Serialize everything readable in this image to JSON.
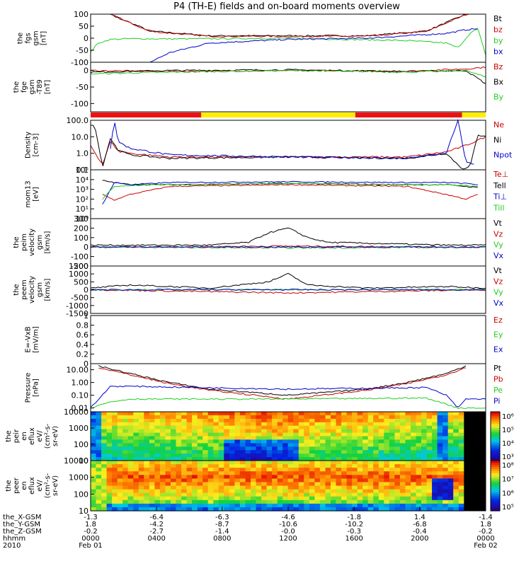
{
  "title": "P4 (TH-E) fields and on-board moments overview",
  "colors": {
    "black": "#000000",
    "red": "#cc0000",
    "green": "#22cc22",
    "blue": "#0000cc",
    "bar_red": "#ee1111",
    "bar_yellow": "#ffee00"
  },
  "chart_data": [
    {
      "type": "line",
      "id": "fgs",
      "ylabel": [
        "the",
        "fgs",
        "gsm",
        "[nT]"
      ],
      "ylim": [
        -100,
        100
      ],
      "yticks": [
        100,
        50,
        0,
        -50,
        -100
      ],
      "legend": [
        "Bt",
        "bz",
        "by",
        "bx"
      ],
      "series": [
        {
          "name": "Bt",
          "color": "black",
          "shape": "bathtub",
          "x": [
            0,
            0.05,
            0.15,
            0.3,
            0.5,
            0.7,
            0.85,
            0.95,
            1.0
          ],
          "y": [
            150,
            100,
            30,
            10,
            10,
            10,
            30,
            100,
            150
          ]
        },
        {
          "name": "bz",
          "color": "red",
          "shape": "bathtub",
          "x": [
            0,
            0.05,
            0.15,
            0.3,
            0.5,
            0.7,
            0.85,
            0.95,
            1.0
          ],
          "y": [
            148,
            98,
            28,
            8,
            8,
            8,
            28,
            98,
            148
          ]
        },
        {
          "name": "by",
          "color": "green",
          "x": [
            0,
            0.02,
            0.05,
            0.1,
            0.2,
            0.5,
            0.8,
            0.9,
            0.93,
            0.96,
            0.98,
            1.0
          ],
          "y": [
            -55,
            -20,
            -5,
            -2,
            -3,
            0,
            -10,
            -20,
            -40,
            20,
            40,
            -70
          ]
        },
        {
          "name": "bx",
          "color": "blue",
          "x": [
            0.15,
            0.2,
            0.3,
            0.5,
            0.7,
            0.8,
            0.9,
            0.95,
            0.98
          ],
          "y": [
            -100,
            -60,
            -20,
            -5,
            0,
            10,
            20,
            35,
            40
          ]
        }
      ]
    },
    {
      "type": "line",
      "id": "fge",
      "ylabel": [
        "the",
        "fge",
        "gsm",
        "-T89",
        "[nT]"
      ],
      "ylim": [
        -125,
        25
      ],
      "yticks": [
        0,
        -50,
        -100
      ],
      "legend": [
        "Bz",
        "Bx",
        "By"
      ],
      "series": [
        {
          "name": "Bz",
          "color": "red",
          "x": [
            0,
            0.2,
            0.5,
            0.8,
            0.95,
            1.0
          ],
          "y": [
            0,
            -3,
            0,
            -2,
            5,
            10
          ]
        },
        {
          "name": "Bx",
          "color": "black",
          "x": [
            0,
            0.2,
            0.5,
            0.8,
            0.95,
            1.0
          ],
          "y": [
            -5,
            0,
            2,
            -3,
            0,
            -40
          ]
        },
        {
          "name": "By",
          "color": "green",
          "x": [
            0,
            0.2,
            0.5,
            0.8,
            0.95,
            1.0
          ],
          "y": [
            -10,
            -5,
            0,
            -5,
            0,
            -20
          ]
        }
      ]
    },
    {
      "type": "bar",
      "id": "mode_bar",
      "segments": [
        {
          "from": 0.0,
          "to": 0.28,
          "color": "bar_red"
        },
        {
          "from": 0.28,
          "to": 0.67,
          "color": "bar_yellow"
        },
        {
          "from": 0.67,
          "to": 0.94,
          "color": "bar_red"
        },
        {
          "from": 0.94,
          "to": 1.0,
          "color": "bar_yellow"
        }
      ]
    },
    {
      "type": "line",
      "id": "density",
      "scale": "log",
      "ylabel": [
        "Density",
        "[cm-3]"
      ],
      "ylim": [
        0.1,
        100
      ],
      "yticks": [
        100.0,
        10.0,
        1.0,
        0.1
      ],
      "yticklabels": [
        "100.0",
        "10.0",
        "1.0",
        "0.1"
      ],
      "legend": [
        "Ne",
        "Ni",
        "Npot"
      ],
      "series": [
        {
          "name": "Ne",
          "color": "red",
          "x": [
            0,
            0.03,
            0.05,
            0.07,
            0.1,
            0.2,
            0.5,
            0.8,
            0.9,
            0.95,
            1.0
          ],
          "y": [
            3,
            0.2,
            5,
            1.5,
            1,
            0.6,
            0.6,
            0.6,
            1.2,
            3,
            10
          ]
        },
        {
          "name": "Ni",
          "color": "black",
          "x": [
            0,
            0.01,
            0.03,
            0.05,
            0.07,
            0.1,
            0.2,
            0.5,
            0.8,
            0.9,
            0.94,
            0.96,
            0.98,
            1.0
          ],
          "y": [
            50,
            60,
            0.15,
            8,
            1.5,
            0.8,
            0.5,
            0.6,
            0.5,
            1,
            0.12,
            0.15,
            12,
            12
          ]
        },
        {
          "name": "Npot",
          "color": "blue",
          "x": [
            0.05,
            0.06,
            0.07,
            0.1,
            0.2,
            0.5,
            0.8,
            0.9,
            0.93,
            0.95,
            0.97
          ],
          "y": [
            2,
            100,
            5,
            2,
            0.8,
            0.6,
            0.5,
            1,
            100,
            0.3,
            0.2
          ]
        }
      ]
    },
    {
      "type": "line",
      "id": "temperature",
      "scale": "log",
      "ylabel": [
        "mom13",
        "[eV]"
      ],
      "ylim": [
        1,
        100000
      ],
      "yticks": [
        100000,
        10000,
        1000,
        100,
        10,
        1
      ],
      "yticklabels": [
        "10⁵",
        "10⁴",
        "10³",
        "10²",
        "10¹",
        "10⁰"
      ],
      "legend": [
        "Te⊥",
        "Tell",
        "Ti⊥",
        "Till"
      ],
      "series": [
        {
          "name": "Te⊥",
          "color": "red",
          "x": [
            0.03,
            0.06,
            0.1,
            0.2,
            0.5,
            0.8,
            0.9,
            0.95,
            0.98
          ],
          "y": [
            300,
            80,
            300,
            2000,
            3000,
            2000,
            300,
            100,
            300
          ]
        },
        {
          "name": "Tell",
          "color": "black",
          "x": [
            0.03,
            0.06,
            0.1,
            0.2,
            0.5,
            0.8,
            0.9,
            0.95,
            0.98
          ],
          "y": [
            8000,
            5000,
            3000,
            3000,
            4000,
            3000,
            3000,
            2000,
            1500
          ]
        },
        {
          "name": "Ti⊥",
          "color": "blue",
          "x": [
            0.03,
            0.06,
            0.1,
            0.2,
            0.5,
            0.8,
            0.9,
            0.95,
            0.98
          ],
          "y": [
            30,
            5000,
            3000,
            5000,
            6000,
            5000,
            5000,
            4000,
            3000
          ]
        },
        {
          "name": "Till",
          "color": "green",
          "x": [
            0.03,
            0.06,
            0.1,
            0.2,
            0.5,
            0.8,
            0.9,
            0.95,
            0.98
          ],
          "y": [
            100,
            2000,
            2500,
            3000,
            4000,
            3000,
            3000,
            2500,
            2000
          ]
        }
      ]
    },
    {
      "type": "line",
      "id": "peim_velocity",
      "ylabel": [
        "the",
        "peim",
        "velocity",
        "gsm",
        "[km/s]"
      ],
      "ylim": [
        -200,
        300
      ],
      "yticks": [
        300,
        200,
        100,
        0,
        -100,
        -200
      ],
      "legend": [
        "Vt",
        "Vz",
        "Vy",
        "Vx"
      ],
      "series": [
        {
          "name": "Vt",
          "color": "black",
          "x": [
            0,
            0.3,
            0.4,
            0.45,
            0.5,
            0.55,
            0.6,
            0.9,
            1.0
          ],
          "y": [
            20,
            20,
            50,
            150,
            200,
            100,
            50,
            20,
            20
          ]
        },
        {
          "name": "Vz",
          "color": "red",
          "x": [
            0,
            0.5,
            1.0
          ],
          "y": [
            0,
            10,
            0
          ]
        },
        {
          "name": "Vy",
          "color": "green",
          "x": [
            0,
            0.5,
            1.0
          ],
          "y": [
            0,
            -10,
            0
          ]
        },
        {
          "name": "Vx",
          "color": "blue",
          "x": [
            0,
            0.5,
            1.0
          ],
          "y": [
            0,
            0,
            0
          ]
        }
      ]
    },
    {
      "type": "line",
      "id": "peem_velocity",
      "ylabel": [
        "the",
        "peem",
        "velocity",
        "gsm",
        "[km/s]"
      ],
      "ylim": [
        -1500,
        1500
      ],
      "yticks": [
        1500,
        1000,
        500,
        0,
        -500,
        -1000,
        -1500
      ],
      "legend": [
        "Vt",
        "Vz",
        "Vy",
        "Vx"
      ],
      "series": [
        {
          "name": "Vt",
          "color": "black",
          "x": [
            0,
            0.1,
            0.3,
            0.45,
            0.5,
            0.55,
            0.7,
            0.9,
            1.0
          ],
          "y": [
            100,
            300,
            100,
            500,
            1000,
            300,
            100,
            200,
            100
          ]
        },
        {
          "name": "Vz",
          "color": "red",
          "x": [
            0,
            0.5,
            1.0
          ],
          "y": [
            0,
            -200,
            0
          ]
        },
        {
          "name": "Vy",
          "color": "green",
          "x": [
            0,
            0.5,
            1.0
          ],
          "y": [
            0,
            0,
            0
          ]
        },
        {
          "name": "Vx",
          "color": "blue",
          "x": [
            0,
            0.5,
            1.0
          ],
          "y": [
            0,
            0,
            0
          ]
        }
      ]
    },
    {
      "type": "line",
      "id": "efield",
      "ylabel": [
        "E=-VxB",
        "[mV/m]"
      ],
      "ylim": [
        0,
        1
      ],
      "yticks": [
        1.0,
        0.8,
        0.6,
        0.4,
        0.2,
        0.0
      ],
      "legend": [
        "Ez",
        "Ey",
        "Ex"
      ],
      "series": []
    },
    {
      "type": "line",
      "id": "pressure",
      "scale": "log",
      "ylabel": [
        "Pressure",
        "[nPa]"
      ],
      "ylim": [
        0.005,
        30
      ],
      "yticks": [
        10,
        1,
        0.1,
        0.01
      ],
      "yticklabels": [
        "10.00",
        "1.00",
        "0.10",
        "0.01"
      ],
      "legend": [
        "Pt",
        "Pb",
        "Pe",
        "Pi"
      ],
      "series": [
        {
          "name": "Pt",
          "color": "black",
          "x": [
            0.02,
            0.1,
            0.2,
            0.3,
            0.5,
            0.7,
            0.8,
            0.9,
            0.95
          ],
          "y": [
            20,
            5,
            1,
            0.3,
            0.1,
            0.3,
            1,
            5,
            20
          ]
        },
        {
          "name": "Pb",
          "color": "red",
          "x": [
            0.02,
            0.1,
            0.2,
            0.3,
            0.5,
            0.7,
            0.8,
            0.9,
            0.95
          ],
          "y": [
            15,
            4,
            0.8,
            0.25,
            0.05,
            0.25,
            0.8,
            4,
            15
          ]
        },
        {
          "name": "Pe",
          "color": "green",
          "x": [
            0,
            0.05,
            0.1,
            0.5,
            0.85,
            0.9,
            0.93,
            1.0
          ],
          "y": [
            0.01,
            0.03,
            0.05,
            0.05,
            0.06,
            0.02,
            0.01,
            0.01
          ]
        },
        {
          "name": "Pi",
          "color": "blue",
          "x": [
            0,
            0.05,
            0.1,
            0.5,
            0.85,
            0.9,
            0.93,
            0.95,
            1.0
          ],
          "y": [
            0.01,
            0.5,
            0.5,
            0.3,
            0.4,
            0.1,
            0.01,
            0.05,
            0.05
          ]
        }
      ]
    },
    {
      "type": "heatmap",
      "id": "peir",
      "ylabel": [
        "the",
        "peir",
        "en",
        "eflux",
        "eV/",
        "(cm²-s-",
        "sr-eV)"
      ],
      "yscale": "log",
      "ylim": [
        10,
        10000
      ],
      "yticks": [
        10000,
        1000,
        100,
        10
      ],
      "colorbar_ticks": [
        "10⁶",
        "10⁵",
        "10⁴",
        "10³"
      ]
    },
    {
      "type": "heatmap",
      "id": "peer",
      "ylabel": [
        "the",
        "peer",
        "en",
        "eflux",
        "eV/",
        "(cm²-s-",
        "sr-eV)"
      ],
      "yscale": "log",
      "ylim": [
        10,
        10000
      ],
      "yticks": [
        10000,
        1000,
        100,
        10
      ],
      "colorbar_ticks": [
        "10⁸",
        "10⁷",
        "10⁶",
        "10⁵"
      ]
    }
  ],
  "x_axis": {
    "row_labels": [
      "the_X-GSM",
      "the_Y-GSM",
      "the_Z-GSM",
      "hhmm",
      "2010"
    ],
    "ticks": [
      {
        "x": 0.0,
        "values": [
          "-1.3",
          "1.8",
          "-0.2",
          "0000",
          "Feb 01"
        ]
      },
      {
        "x": 0.167,
        "values": [
          "-6.4",
          "-4.2",
          "-2.7",
          "0400",
          ""
        ]
      },
      {
        "x": 0.333,
        "values": [
          "-6.3",
          "-8.7",
          "-1.4",
          "0800",
          ""
        ]
      },
      {
        "x": 0.5,
        "values": [
          "-4.6",
          "-10.6",
          "-0.0",
          "1200",
          ""
        ]
      },
      {
        "x": 0.667,
        "values": [
          "-1.8",
          "-10.2",
          "-0.3",
          "1600",
          ""
        ]
      },
      {
        "x": 0.833,
        "values": [
          "1.4",
          "-6.8",
          "-0.4",
          "2000",
          ""
        ]
      },
      {
        "x": 1.0,
        "values": [
          "-1.4",
          "1.8",
          "-0.2",
          "0000",
          "Feb 02"
        ]
      }
    ]
  }
}
